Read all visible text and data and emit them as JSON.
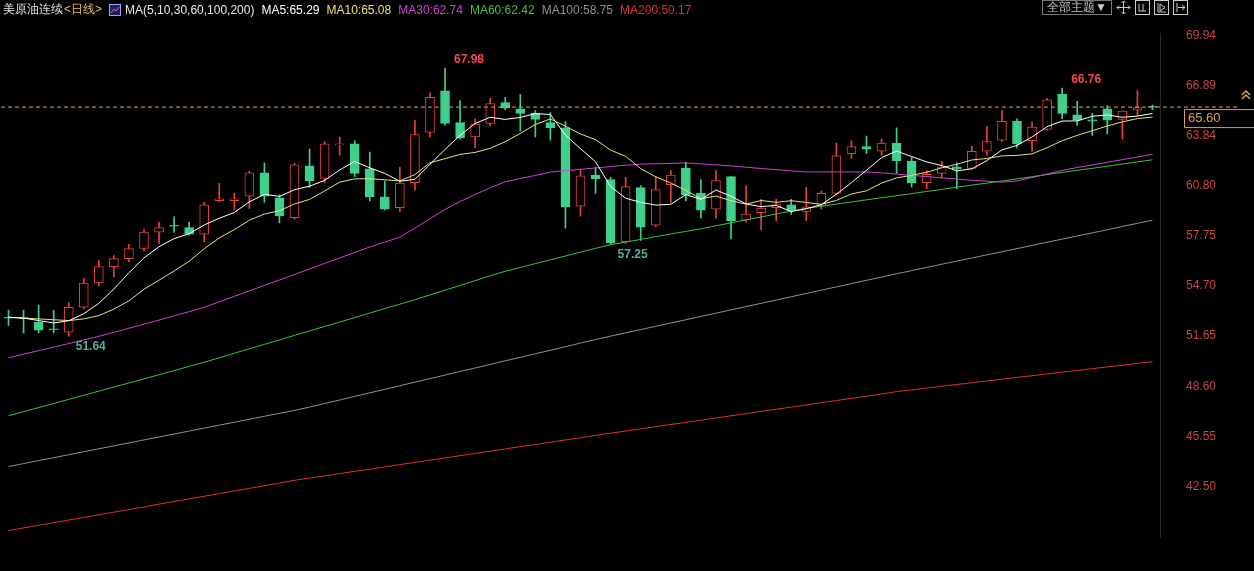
{
  "chart_data": {
    "type": "candlestick",
    "title": "美原油连续",
    "subtitle": "<日线>",
    "legend_title": "MA(5,10,30,60,100,200)",
    "legend": "top",
    "tick_labels": "y",
    "marker": "none",
    "line_style": "solid",
    "categories": [
      null,
      null,
      null,
      null,
      null,
      null,
      null,
      null,
      null,
      null,
      null,
      null,
      null,
      null,
      null,
      null,
      null,
      null,
      null,
      null,
      null,
      null,
      null,
      null,
      null,
      null,
      null,
      null,
      null,
      null,
      null,
      null,
      null,
      null,
      null,
      null,
      null,
      null,
      null,
      null,
      null,
      null,
      null,
      null,
      null,
      null,
      null,
      null,
      null,
      null,
      null,
      null,
      null,
      null,
      null,
      null,
      null,
      null,
      null,
      null,
      null,
      null,
      null,
      null,
      null,
      null,
      null,
      null,
      null,
      null,
      null,
      null,
      null,
      null,
      null,
      null,
      null
    ],
    "ohlc": [
      [
        52.8,
        53.23,
        52.3,
        52.75
      ],
      [
        52.78,
        53.23,
        51.84,
        52.73
      ],
      [
        52.49,
        53.54,
        51.84,
        52.02
      ],
      [
        52.1,
        53.23,
        51.84,
        52.05
      ],
      [
        51.89,
        53.69,
        51.64,
        53.41
      ],
      [
        53.41,
        55.17,
        53.32,
        54.89
      ],
      [
        54.89,
        56.28,
        54.71,
        55.88
      ],
      [
        55.88,
        56.56,
        55.26,
        56.37
      ],
      [
        56.37,
        57.24,
        56.19,
        56.99
      ],
      [
        56.99,
        58.17,
        56.84,
        57.99
      ],
      [
        57.99,
        58.6,
        57.3,
        58.26
      ],
      [
        58.4,
        58.91,
        57.99,
        58.35
      ],
      [
        58.26,
        58.6,
        57.8,
        57.86
      ],
      [
        57.86,
        59.8,
        57.39,
        59.65
      ],
      [
        59.9,
        60.95,
        59.84,
        60.02
      ],
      [
        59.9,
        60.36,
        59.34,
        60.02
      ],
      [
        60.17,
        61.69,
        59.43,
        61.6
      ],
      [
        61.6,
        62.21,
        59.8,
        60.17
      ],
      [
        60.08,
        60.26,
        58.54,
        58.97
      ],
      [
        58.87,
        62.17,
        58.78,
        62.08
      ],
      [
        62.02,
        63.04,
        60.73,
        61.1
      ],
      [
        61.25,
        63.5,
        61.0,
        63.36
      ],
      [
        63.3,
        63.78,
        62.67,
        63.36
      ],
      [
        63.36,
        63.54,
        61.37,
        61.56
      ],
      [
        61.84,
        62.86,
        59.89,
        60.13
      ],
      [
        60.13,
        61.1,
        59.34,
        59.39
      ],
      [
        59.47,
        61.93,
        59.24,
        60.97
      ],
      [
        61.0,
        64.8,
        60.54,
        63.93
      ],
      [
        64.06,
        66.46,
        63.78,
        66.19
      ],
      [
        66.59,
        67.98,
        64.5,
        64.61
      ],
      [
        64.65,
        66.0,
        63.65,
        63.72
      ],
      [
        63.78,
        64.89,
        63.13,
        64.57
      ],
      [
        64.61,
        66.13,
        64.46,
        65.82
      ],
      [
        65.87,
        66.19,
        65.45,
        65.54
      ],
      [
        65.5,
        66.37,
        64.15,
        65.22
      ],
      [
        65.22,
        65.39,
        63.78,
        64.85
      ],
      [
        64.65,
        65.26,
        63.59,
        64.33
      ],
      [
        64.33,
        64.7,
        58.22,
        59.52
      ],
      [
        59.56,
        61.8,
        58.96,
        61.41
      ],
      [
        61.46,
        61.93,
        60.35,
        61.22
      ],
      [
        61.19,
        61.32,
        57.25,
        57.33
      ],
      [
        57.39,
        61.32,
        57.3,
        60.76
      ],
      [
        60.7,
        60.82,
        57.48,
        58.28
      ],
      [
        58.41,
        61.37,
        58.32,
        60.57
      ],
      [
        60.87,
        61.74,
        59.8,
        61.46
      ],
      [
        61.87,
        62.24,
        59.89,
        60.26
      ],
      [
        60.35,
        61.19,
        58.83,
        59.33
      ],
      [
        59.39,
        61.74,
        58.83,
        61.13
      ],
      [
        61.37,
        61.37,
        57.57,
        58.69
      ],
      [
        58.72,
        60.82,
        58.59,
        59.09
      ],
      [
        59.17,
        59.98,
        58.13,
        59.45
      ],
      [
        59.48,
        59.98,
        58.69,
        59.67
      ],
      [
        59.65,
        59.98,
        59.06,
        59.3
      ],
      [
        59.24,
        60.72,
        58.69,
        59.52
      ],
      [
        59.61,
        60.5,
        59.4,
        60.35
      ],
      [
        60.35,
        63.41,
        60.26,
        62.63
      ],
      [
        62.76,
        63.54,
        62.48,
        63.19
      ],
      [
        63.19,
        63.83,
        62.76,
        63.04
      ],
      [
        62.91,
        63.65,
        62.67,
        63.41
      ],
      [
        63.41,
        64.33,
        61.56,
        62.33
      ],
      [
        62.3,
        62.52,
        60.72,
        61.0
      ],
      [
        61.0,
        61.74,
        60.63,
        61.5
      ],
      [
        61.56,
        62.3,
        61.28,
        61.96
      ],
      [
        61.96,
        62.2,
        60.63,
        61.83
      ],
      [
        61.87,
        63.22,
        61.83,
        62.91
      ],
      [
        62.91,
        64.43,
        62.67,
        63.5
      ],
      [
        63.59,
        65.39,
        63.5,
        64.74
      ],
      [
        64.74,
        64.89,
        63.13,
        63.37
      ],
      [
        63.56,
        64.7,
        62.91,
        64.39
      ],
      [
        64.24,
        66.13,
        64.2,
        66.04
      ],
      [
        66.37,
        66.76,
        64.89,
        65.22
      ],
      [
        65.13,
        65.95,
        64.48,
        64.8
      ],
      [
        64.83,
        65.2,
        63.87,
        64.74
      ],
      [
        65.5,
        65.69,
        63.96,
        64.8
      ],
      [
        64.85,
        65.35,
        63.65,
        65.35
      ],
      [
        65.41,
        66.61,
        65.07,
        65.57
      ],
      [
        65.65,
        65.72,
        65.45,
        65.6
      ]
    ],
    "colors": [
      "#3fd08c",
      "#3fd08c",
      "#3fd08c",
      "#3fd08c",
      "#e8403c",
      "#e8403c",
      "#e8403c",
      "#e8403c",
      "#e8403c",
      "#e8403c",
      "#e8403c",
      "#3fd08c",
      "#3fd08c",
      "#e8403c",
      "#e8403c",
      "#e8403c",
      "#e8403c",
      "#3fd08c",
      "#3fd08c",
      "#e8403c",
      "#3fd08c",
      "#e8403c",
      "#e8403c",
      "#3fd08c",
      "#3fd08c",
      "#3fd08c",
      "#e8403c",
      "#e8403c",
      "#e8403c",
      "#3fd08c",
      "#3fd08c",
      "#e8403c",
      "#e8403c",
      "#3fd08c",
      "#3fd08c",
      "#3fd08c",
      "#3fd08c",
      "#3fd08c",
      "#e8403c",
      "#3fd08c",
      "#3fd08c",
      "#e8403c",
      "#3fd08c",
      "#e8403c",
      "#e8403c",
      "#3fd08c",
      "#3fd08c",
      "#e8403c",
      "#3fd08c",
      "#e8403c",
      "#e8403c",
      "#e8403c",
      "#3fd08c",
      "#e8403c",
      "#e8403c",
      "#e8403c",
      "#e8403c",
      "#3fd08c",
      "#e8403c",
      "#3fd08c",
      "#3fd08c",
      "#e8403c",
      "#e8403c",
      "#3fd08c",
      "#e8403c",
      "#e8403c",
      "#e8403c",
      "#3fd08c",
      "#e8403c",
      "#e8403c",
      "#3fd08c",
      "#3fd08c",
      "#3fd08c",
      "#3fd08c",
      "#e8403c",
      "#e8403c",
      "#3fd08c"
    ],
    "series": [
      {
        "type": "line",
        "name": "MA5:65.29",
        "color": "#ffffff",
        "values": [
          52.8,
          52.75,
          52.6,
          52.45,
          52.59,
          53.02,
          53.65,
          54.52,
          55.51,
          56.42,
          57.1,
          57.59,
          57.89,
          58.42,
          58.83,
          59.18,
          59.83,
          60.29,
          60.16,
          60.57,
          60.78,
          61.14,
          61.77,
          62.29,
          61.9,
          61.56,
          61.08,
          61.2,
          62.12,
          63.02,
          63.88,
          64.6,
          64.98,
          64.85,
          64.97,
          65.2,
          65.15,
          63.89,
          63.07,
          62.27,
          60.76,
          60.05,
          59.8,
          59.63,
          59.68,
          60.27,
          59.98,
          60.55,
          60.17,
          59.7,
          59.54,
          59.61,
          59.24,
          59.41,
          59.66,
          60.29,
          61.0,
          61.75,
          62.52,
          62.92,
          62.59,
          62.26,
          62.04,
          61.72,
          61.84,
          62.34,
          62.99,
          63.27,
          63.78,
          64.41,
          64.75,
          64.76,
          65.04,
          65.12,
          64.98,
          65.05,
          65.21
        ]
      },
      {
        "type": "line",
        "name": "MA10:65.08",
        "color": "#e8e07a",
        "values": [
          52.8,
          52.75,
          52.7,
          52.65,
          52.6,
          52.7,
          52.9,
          53.3,
          53.8,
          54.51,
          55.06,
          55.62,
          56.21,
          56.97,
          57.63,
          58.14,
          58.71,
          59.09,
          59.29,
          59.7,
          59.98,
          60.49,
          61.03,
          61.23,
          61.24,
          61.17,
          61.11,
          61.49,
          62.21,
          62.46,
          62.72,
          62.84,
          63.09,
          63.49,
          64.0,
          64.54,
          64.88,
          64.44,
          63.96,
          63.62,
          62.98,
          62.6,
          61.85,
          61.35,
          60.98,
          60.52,
          60.02,
          60.18,
          59.9,
          59.69,
          59.91,
          59.8,
          59.9,
          59.79,
          59.68,
          59.92,
          60.31,
          60.5,
          60.97,
          61.29,
          61.44,
          61.63,
          61.9,
          62.12,
          62.38,
          62.47,
          62.63,
          62.66,
          62.75,
          63.13,
          63.55,
          63.88,
          64.16,
          64.45,
          64.7,
          64.9,
          64.99
        ]
      },
      {
        "type": "line",
        "name": "MA30:62.74",
        "color": "#d040d0",
        "values": [
          50.33,
          50.55,
          50.77,
          50.98,
          51.2,
          51.42,
          51.64,
          51.88,
          52.13,
          52.38,
          52.63,
          52.89,
          53.14,
          53.41,
          53.74,
          54.07,
          54.41,
          54.74,
          55.07,
          55.41,
          55.74,
          56.08,
          56.41,
          56.75,
          57.08,
          57.38,
          57.68,
          58.23,
          58.8,
          59.37,
          59.85,
          60.27,
          60.69,
          61.05,
          61.25,
          61.44,
          61.64,
          61.73,
          61.81,
          61.89,
          61.98,
          62.06,
          62.12,
          62.15,
          62.17,
          62.2,
          62.14,
          62.08,
          62.02,
          61.94,
          61.86,
          61.79,
          61.71,
          61.65,
          61.65,
          61.65,
          61.65,
          61.65,
          61.59,
          61.52,
          61.44,
          61.37,
          61.29,
          61.22,
          61.14,
          61.09,
          61.03,
          61.1,
          61.31,
          61.53,
          61.74,
          61.92,
          62.08,
          62.24,
          62.4,
          62.56,
          62.72
        ]
      },
      {
        "type": "line",
        "name": "MA60:62.42",
        "color": "#40c040",
        "values": [
          46.8,
          47.05,
          47.3,
          47.55,
          47.8,
          48.05,
          48.3,
          48.55,
          48.8,
          49.05,
          49.3,
          49.55,
          49.81,
          50.06,
          50.33,
          50.61,
          50.88,
          51.15,
          51.42,
          51.7,
          51.97,
          52.24,
          52.51,
          52.78,
          53.06,
          53.33,
          53.6,
          53.87,
          54.16,
          54.45,
          54.74,
          55.03,
          55.33,
          55.6,
          55.83,
          56.07,
          56.3,
          56.53,
          56.77,
          57.0,
          57.22,
          57.38,
          57.54,
          57.71,
          57.87,
          58.03,
          58.19,
          58.37,
          58.55,
          58.73,
          58.91,
          59.09,
          59.27,
          59.43,
          59.56,
          59.69,
          59.82,
          59.95,
          60.08,
          60.2,
          60.33,
          60.46,
          60.59,
          60.72,
          60.85,
          60.97,
          61.1,
          61.23,
          61.36,
          61.49,
          61.62,
          61.75,
          61.87,
          62.0,
          62.13,
          62.26,
          62.39
        ]
      },
      {
        "type": "line",
        "name": "MA100:58.75",
        "color": "#909090",
        "values": [
          43.71,
          43.89,
          44.07,
          44.25,
          44.43,
          44.61,
          44.79,
          44.97,
          45.15,
          45.33,
          45.51,
          45.69,
          45.87,
          46.05,
          46.23,
          46.41,
          46.59,
          46.77,
          46.95,
          47.13,
          47.33,
          47.55,
          47.76,
          47.98,
          48.2,
          48.41,
          48.63,
          48.85,
          49.06,
          49.28,
          49.5,
          49.71,
          49.93,
          50.15,
          50.36,
          50.58,
          50.79,
          51.01,
          51.23,
          51.44,
          51.65,
          51.85,
          52.05,
          52.25,
          52.45,
          52.65,
          52.85,
          53.05,
          53.25,
          53.45,
          53.65,
          53.85,
          54.05,
          54.25,
          54.45,
          54.65,
          54.85,
          55.05,
          55.25,
          55.45,
          55.64,
          55.84,
          56.03,
          56.22,
          56.41,
          56.6,
          56.79,
          56.98,
          57.18,
          57.37,
          57.56,
          57.75,
          57.94,
          58.13,
          58.33,
          58.52,
          58.71
        ]
      },
      {
        "type": "line",
        "name": "MA200:50.17",
        "color": "#e03030",
        "values": [
          39.81,
          39.97,
          40.13,
          40.29,
          40.45,
          40.61,
          40.77,
          40.93,
          41.09,
          41.25,
          41.42,
          41.58,
          41.74,
          41.9,
          42.06,
          42.22,
          42.38,
          42.54,
          42.7,
          42.87,
          43.01,
          43.14,
          43.28,
          43.42,
          43.55,
          43.69,
          43.83,
          43.96,
          44.1,
          44.23,
          44.37,
          44.51,
          44.64,
          44.78,
          44.92,
          45.05,
          45.19,
          45.33,
          45.46,
          45.61,
          45.74,
          45.87,
          46.0,
          46.14,
          46.27,
          46.4,
          46.53,
          46.67,
          46.8,
          46.93,
          47.07,
          47.2,
          47.33,
          47.46,
          47.6,
          47.73,
          47.86,
          47.99,
          48.13,
          48.27,
          48.38,
          48.49,
          48.6,
          48.71,
          48.81,
          48.92,
          49.03,
          49.14,
          49.24,
          49.35,
          49.46,
          49.56,
          49.67,
          49.78,
          49.88,
          49.99,
          50.1
        ]
      }
    ],
    "ylim": [
      39.37,
      70.1
    ],
    "yticks": [
      69.94,
      66.89,
      63.84,
      {
        "value": 60.8,
        "label": "60.80"
      },
      57.75,
      {
        "value": 54.7,
        "label": "54.70"
      },
      51.65,
      {
        "value": 48.6,
        "label": "48.60"
      },
      45.55,
      {
        "value": 42.5,
        "label": "42.50"
      }
    ],
    "grid": false,
    "ref_lines": [
      {
        "axis": "y",
        "value": 65.6,
        "label": "65.60",
        "color": "#e0a050",
        "line_style": "dashed"
      }
    ],
    "annotations": [
      "全部主题▼",
      "67.98",
      "57.25",
      "66.76",
      "51.64"
    ]
  }
}
